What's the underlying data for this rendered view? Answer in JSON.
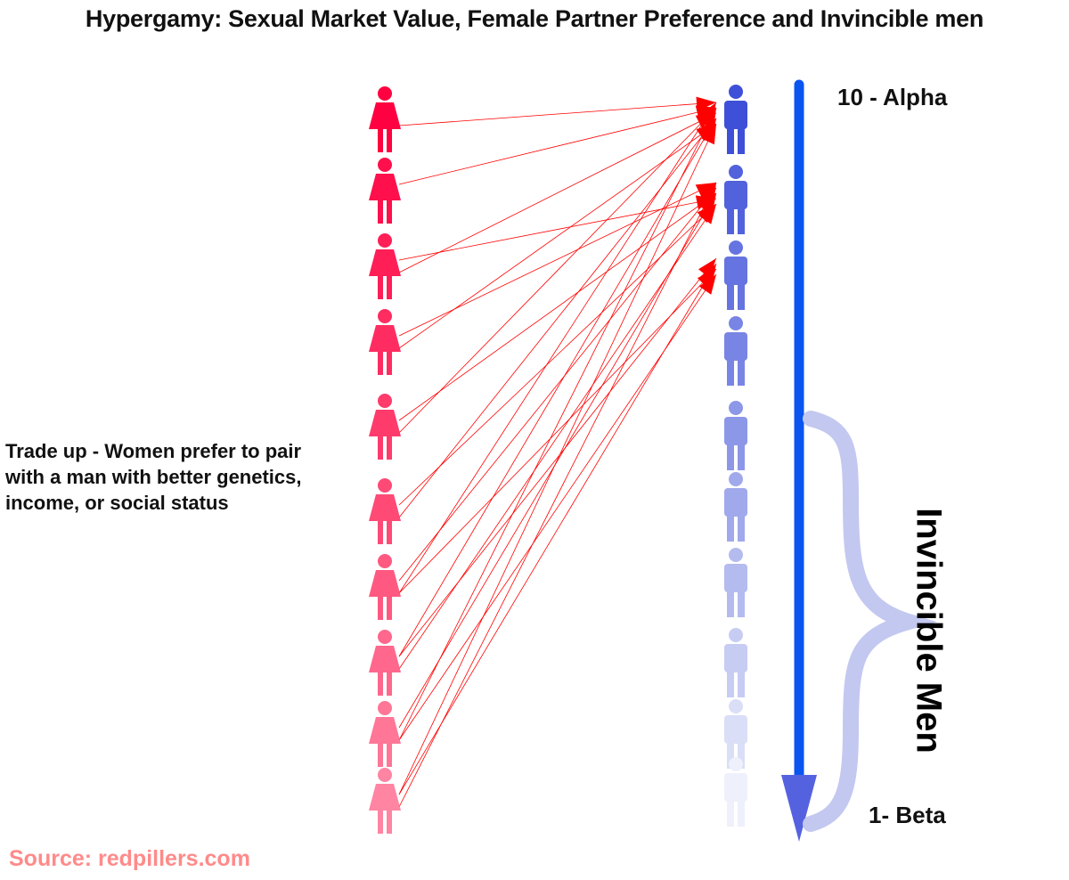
{
  "title": "Hypergamy: Sexual Market Value, Female Partner Preference and Invincible men",
  "left_text": "Trade up - Women prefer to pair with a man with better genetics, income, or social status",
  "source": "Source: redpillers.com",
  "scale": {
    "top_label": "10 - Alpha",
    "bottom_label": "1- Beta"
  },
  "brace_label": "Invincible Men",
  "colors": {
    "women_top": "#ff0040",
    "women_bottom": "#ff85a2",
    "men_top": "#3e50d8",
    "men_bottom": "#eef0fb",
    "connection": "#ff0000",
    "scale_arrow": "#0a55f0",
    "brace": "#c3c8f0"
  },
  "women_count": 10,
  "men_count": 10,
  "connections": [
    [
      0,
      0
    ],
    [
      1,
      0
    ],
    [
      2,
      0
    ],
    [
      2,
      1
    ],
    [
      3,
      0
    ],
    [
      3,
      1
    ],
    [
      4,
      0
    ],
    [
      4,
      1
    ],
    [
      5,
      0
    ],
    [
      5,
      1
    ],
    [
      6,
      0
    ],
    [
      6,
      1
    ],
    [
      6,
      2
    ],
    [
      7,
      0
    ],
    [
      7,
      1
    ],
    [
      7,
      2
    ],
    [
      8,
      0
    ],
    [
      8,
      1
    ],
    [
      8,
      2
    ],
    [
      9,
      0
    ],
    [
      9,
      1
    ],
    [
      9,
      2
    ]
  ]
}
